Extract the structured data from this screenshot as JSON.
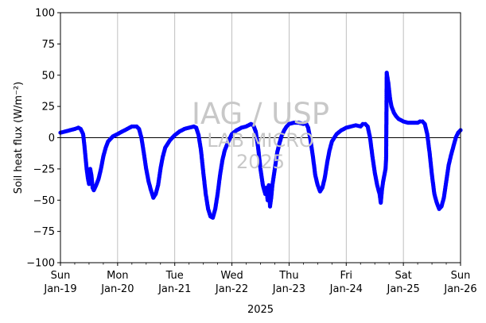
{
  "chart_data": {
    "type": "scatter",
    "xlabel": "2025",
    "ylabel": "Soil heat flux (W/m⁻²)",
    "ylim": [
      -100,
      100
    ],
    "yticks": [
      -100,
      -75,
      -50,
      -25,
      0,
      25,
      50,
      75,
      100
    ],
    "xrange": [
      "2025-01-19",
      "2025-01-26"
    ],
    "xticks": [
      {
        "date": "2025-01-19",
        "day": "Sun",
        "label": "Jan-19"
      },
      {
        "date": "2025-01-20",
        "day": "Mon",
        "label": "Jan-20"
      },
      {
        "date": "2025-01-21",
        "day": "Tue",
        "label": "Jan-21"
      },
      {
        "date": "2025-01-22",
        "day": "Wed",
        "label": "Jan-22"
      },
      {
        "date": "2025-01-23",
        "day": "Thu",
        "label": "Jan-23"
      },
      {
        "date": "2025-01-24",
        "day": "Fri",
        "label": "Jan-24"
      },
      {
        "date": "2025-01-25",
        "day": "Sat",
        "label": "Jan-25"
      },
      {
        "date": "2025-01-26",
        "day": "Sun",
        "label": "Jan-26"
      }
    ],
    "grid": "x-major",
    "zero_line": true,
    "marker_color": "#0000ff",
    "series": [
      {
        "points": [
          [
            "2025-01-19T00:00",
            4
          ],
          [
            "2025-01-19T02:00",
            5
          ],
          [
            "2025-01-19T04:00",
            6
          ],
          [
            "2025-01-19T06:00",
            7
          ],
          [
            "2025-01-19T07:30",
            8
          ],
          [
            "2025-01-19T08:30",
            7
          ],
          [
            "2025-01-19T09:30",
            3
          ],
          [
            "2025-01-19T10:00",
            -5
          ],
          [
            "2025-01-19T10:30",
            -15
          ],
          [
            "2025-01-19T11:00",
            -25
          ],
          [
            "2025-01-19T11:30",
            -32
          ],
          [
            "2025-01-19T12:00",
            -37
          ],
          [
            "2025-01-19T12:30",
            -25
          ],
          [
            "2025-01-19T13:00",
            -30
          ],
          [
            "2025-01-19T13:30",
            -40
          ],
          [
            "2025-01-19T14:00",
            -42
          ],
          [
            "2025-01-19T15:00",
            -38
          ],
          [
            "2025-01-19T16:00",
            -33
          ],
          [
            "2025-01-19T17:00",
            -25
          ],
          [
            "2025-01-19T18:00",
            -15
          ],
          [
            "2025-01-19T19:00",
            -8
          ],
          [
            "2025-01-19T20:00",
            -3
          ],
          [
            "2025-01-19T22:00",
            1
          ],
          [
            "2025-01-20T00:00",
            3
          ],
          [
            "2025-01-20T02:00",
            5
          ],
          [
            "2025-01-20T04:00",
            7
          ],
          [
            "2025-01-20T06:00",
            9
          ],
          [
            "2025-01-20T08:00",
            9
          ],
          [
            "2025-01-20T09:00",
            7
          ],
          [
            "2025-01-20T10:00",
            0
          ],
          [
            "2025-01-20T11:00",
            -12
          ],
          [
            "2025-01-20T12:00",
            -25
          ],
          [
            "2025-01-20T13:00",
            -35
          ],
          [
            "2025-01-20T14:00",
            -42
          ],
          [
            "2025-01-20T15:00",
            -48
          ],
          [
            "2025-01-20T16:00",
            -45
          ],
          [
            "2025-01-20T17:00",
            -38
          ],
          [
            "2025-01-20T18:00",
            -25
          ],
          [
            "2025-01-20T19:00",
            -15
          ],
          [
            "2025-01-20T20:00",
            -8
          ],
          [
            "2025-01-20T22:00",
            -2
          ],
          [
            "2025-01-21T00:00",
            2
          ],
          [
            "2025-01-21T02:00",
            5
          ],
          [
            "2025-01-21T04:00",
            7
          ],
          [
            "2025-01-21T06:00",
            8
          ],
          [
            "2025-01-21T08:00",
            9
          ],
          [
            "2025-01-21T09:00",
            8
          ],
          [
            "2025-01-21T10:00",
            2
          ],
          [
            "2025-01-21T11:00",
            -10
          ],
          [
            "2025-01-21T12:00",
            -28
          ],
          [
            "2025-01-21T13:00",
            -45
          ],
          [
            "2025-01-21T14:00",
            -57
          ],
          [
            "2025-01-21T15:00",
            -63
          ],
          [
            "2025-01-21T16:00",
            -64
          ],
          [
            "2025-01-21T17:00",
            -57
          ],
          [
            "2025-01-21T18:00",
            -45
          ],
          [
            "2025-01-21T19:00",
            -30
          ],
          [
            "2025-01-21T20:00",
            -18
          ],
          [
            "2025-01-21T21:00",
            -10
          ],
          [
            "2025-01-21T22:30",
            -3
          ],
          [
            "2025-01-22T00:00",
            3
          ],
          [
            "2025-01-22T02:00",
            6
          ],
          [
            "2025-01-22T04:00",
            8
          ],
          [
            "2025-01-22T06:00",
            9
          ],
          [
            "2025-01-22T08:00",
            11
          ],
          [
            "2025-01-22T09:00",
            10
          ],
          [
            "2025-01-22T10:00",
            5
          ],
          [
            "2025-01-22T11:00",
            -8
          ],
          [
            "2025-01-22T12:00",
            -25
          ],
          [
            "2025-01-22T13:00",
            -38
          ],
          [
            "2025-01-22T14:00",
            -45
          ],
          [
            "2025-01-22T14:30",
            -40
          ],
          [
            "2025-01-22T15:00",
            -50
          ],
          [
            "2025-01-22T15:30",
            -38
          ],
          [
            "2025-01-22T16:00",
            -55
          ],
          [
            "2025-01-22T16:30",
            -48
          ],
          [
            "2025-01-22T17:00",
            -38
          ],
          [
            "2025-01-22T18:00",
            -25
          ],
          [
            "2025-01-22T19:00",
            -12
          ],
          [
            "2025-01-22T20:00",
            -4
          ],
          [
            "2025-01-22T21:00",
            2
          ],
          [
            "2025-01-22T22:00",
            6
          ],
          [
            "2025-01-22T23:00",
            9
          ],
          [
            "2025-01-23T00:00",
            11
          ],
          [
            "2025-01-23T02:00",
            12
          ],
          [
            "2025-01-23T04:00",
            12
          ],
          [
            "2025-01-23T06:00",
            11
          ],
          [
            "2025-01-23T07:00",
            12
          ],
          [
            "2025-01-23T08:00",
            8
          ],
          [
            "2025-01-23T09:00",
            -2
          ],
          [
            "2025-01-23T10:00",
            -15
          ],
          [
            "2025-01-23T11:00",
            -30
          ],
          [
            "2025-01-23T12:00",
            -38
          ],
          [
            "2025-01-23T13:00",
            -43
          ],
          [
            "2025-01-23T14:00",
            -40
          ],
          [
            "2025-01-23T15:00",
            -32
          ],
          [
            "2025-01-23T16:00",
            -20
          ],
          [
            "2025-01-23T17:00",
            -10
          ],
          [
            "2025-01-23T18:00",
            -3
          ],
          [
            "2025-01-23T20:00",
            3
          ],
          [
            "2025-01-23T22:00",
            6
          ],
          [
            "2025-01-24T00:00",
            8
          ],
          [
            "2025-01-24T02:00",
            9
          ],
          [
            "2025-01-24T04:00",
            10
          ],
          [
            "2025-01-24T06:00",
            9
          ],
          [
            "2025-01-24T07:00",
            11
          ],
          [
            "2025-01-24T08:00",
            11
          ],
          [
            "2025-01-24T09:00",
            9
          ],
          [
            "2025-01-24T10:00",
            0
          ],
          [
            "2025-01-24T11:00",
            -15
          ],
          [
            "2025-01-24T12:00",
            -28
          ],
          [
            "2025-01-24T13:00",
            -38
          ],
          [
            "2025-01-24T14:00",
            -45
          ],
          [
            "2025-01-24T14:30",
            -52
          ],
          [
            "2025-01-24T15:00",
            -42
          ],
          [
            "2025-01-24T15:30",
            -35
          ],
          [
            "2025-01-24T16:00",
            -30
          ],
          [
            "2025-01-24T16:30",
            -25
          ],
          [
            "2025-01-24T16:45",
            -17
          ],
          [
            "2025-01-24T16:50",
            5
          ],
          [
            "2025-01-24T17:00",
            52
          ],
          [
            "2025-01-24T17:20",
            48
          ],
          [
            "2025-01-24T17:40",
            44
          ],
          [
            "2025-01-24T18:00",
            38
          ],
          [
            "2025-01-24T18:30",
            30
          ],
          [
            "2025-01-24T19:00",
            25
          ],
          [
            "2025-01-24T20:00",
            20
          ],
          [
            "2025-01-24T21:00",
            17
          ],
          [
            "2025-01-24T22:00",
            15
          ],
          [
            "2025-01-24T23:00",
            14
          ],
          [
            "2025-01-25T00:00",
            13
          ],
          [
            "2025-01-25T02:00",
            12
          ],
          [
            "2025-01-25T04:00",
            12
          ],
          [
            "2025-01-25T06:00",
            12
          ],
          [
            "2025-01-25T07:00",
            13
          ],
          [
            "2025-01-25T08:00",
            13
          ],
          [
            "2025-01-25T09:00",
            11
          ],
          [
            "2025-01-25T10:00",
            3
          ],
          [
            "2025-01-25T11:00",
            -12
          ],
          [
            "2025-01-25T12:00",
            -30
          ],
          [
            "2025-01-25T13:00",
            -45
          ],
          [
            "2025-01-25T14:00",
            -52
          ],
          [
            "2025-01-25T15:00",
            -57
          ],
          [
            "2025-01-25T16:00",
            -55
          ],
          [
            "2025-01-25T17:00",
            -48
          ],
          [
            "2025-01-25T18:00",
            -35
          ],
          [
            "2025-01-25T19:00",
            -22
          ],
          [
            "2025-01-25T20:00",
            -14
          ],
          [
            "2025-01-25T21:00",
            -7
          ],
          [
            "2025-01-25T22:00",
            0
          ],
          [
            "2025-01-25T23:00",
            4
          ],
          [
            "2025-01-26T00:00",
            6
          ]
        ]
      }
    ]
  },
  "watermark": {
    "line1": "IAG / USP",
    "line2": "LAB MICRO",
    "line3": "2025"
  }
}
